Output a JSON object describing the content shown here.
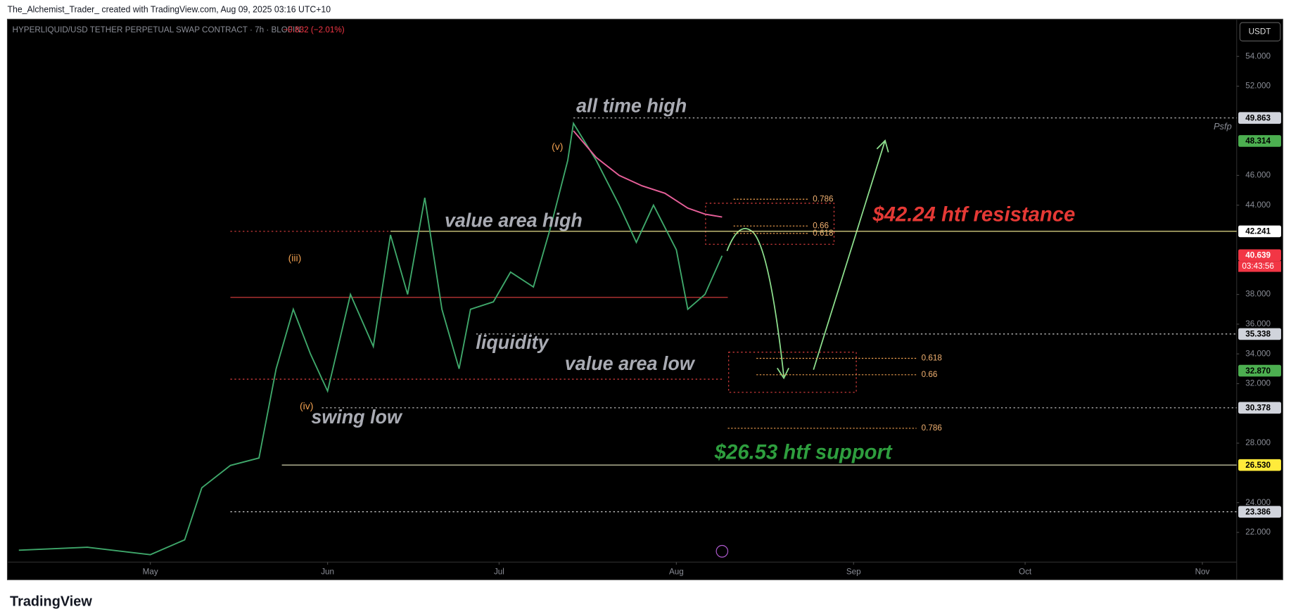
{
  "header": "The_Alchemist_Trader_ created with TradingView.com, Aug 09, 2025 03:16 UTC+10",
  "logo": "TradingView",
  "currency_button": "USDT",
  "chart_data": {
    "type": "line",
    "title": "HYPERLIQUID/USD TETHER PERPETUAL SWAP CONTRACT · 7h · BLOFIN",
    "change": "−0.832 (−2.01%)",
    "xlim": [
      "2025-04-06",
      "2025-11-07"
    ],
    "xticks": [
      {
        "value": "2025-05-01",
        "label": "May"
      },
      {
        "value": "2025-06-01",
        "label": "Jun"
      },
      {
        "value": "2025-07-01",
        "label": "Jul"
      },
      {
        "value": "2025-08-01",
        "label": "Aug"
      },
      {
        "value": "2025-09-01",
        "label": "Sep"
      },
      {
        "value": "2025-10-01",
        "label": "Oct"
      },
      {
        "value": "2025-11-01",
        "label": "Nov"
      }
    ],
    "ylim": [
      20,
      56.5
    ],
    "yticks": [
      {
        "value": 54,
        "label": "54.000"
      },
      {
        "value": 52,
        "label": "52.000"
      },
      {
        "value": 46,
        "label": "46.000"
      },
      {
        "value": 44,
        "label": "44.000"
      },
      {
        "value": 38,
        "label": "38.000"
      },
      {
        "value": 36,
        "label": "36.000"
      },
      {
        "value": 34,
        "label": "34.000"
      },
      {
        "value": 32,
        "label": "32.000"
      },
      {
        "value": 28,
        "label": "28.000"
      },
      {
        "value": 24,
        "label": "24.000"
      },
      {
        "value": 22,
        "label": "22.000"
      }
    ],
    "grid": false,
    "series": [
      {
        "color": "#3fa86b",
        "x": [
          "2025-04-08",
          "2025-04-20",
          "2025-05-01",
          "2025-05-07",
          "2025-05-10",
          "2025-05-15",
          "2025-05-20",
          "2025-05-23",
          "2025-05-26",
          "2025-05-29",
          "2025-06-01",
          "2025-06-05",
          "2025-06-09",
          "2025-06-12",
          "2025-06-15",
          "2025-06-18",
          "2025-06-21",
          "2025-06-24",
          "2025-06-26",
          "2025-06-30",
          "2025-07-03",
          "2025-07-07",
          "2025-07-10",
          "2025-07-13",
          "2025-07-14",
          "2025-07-18",
          "2025-07-22",
          "2025-07-25",
          "2025-07-28",
          "2025-08-01",
          "2025-08-03",
          "2025-08-06",
          "2025-08-09"
        ],
        "values": [
          20.8,
          21.0,
          20.5,
          21.5,
          25,
          26.5,
          27,
          33,
          37,
          34,
          31.5,
          38,
          34.5,
          42,
          38,
          44.5,
          37,
          33,
          37,
          37.5,
          39.5,
          38.5,
          42.5,
          47,
          49.5,
          47,
          44,
          41.5,
          44,
          41,
          37,
          38,
          40.6
        ]
      },
      {
        "color": "#e8609a",
        "x": [
          "2025-07-14",
          "2025-07-18",
          "2025-07-22",
          "2025-07-26",
          "2025-07-30",
          "2025-08-03",
          "2025-08-06",
          "2025-08-09"
        ],
        "values": [
          49,
          47.2,
          46,
          45.3,
          44.8,
          43.8,
          43.4,
          43.2
        ]
      }
    ],
    "levels": [
      {
        "value": 49.863,
        "from": "2025-07-14",
        "color": "#cfcfcf",
        "dash": true
      },
      {
        "value": 42.241,
        "from": "2025-06-12",
        "color": "#e8e08a",
        "dash": false
      },
      {
        "value": 42.24,
        "from": "2025-05-15",
        "to": "2025-06-12",
        "color": "#e04040",
        "dash": true
      },
      {
        "value": 37.8,
        "from": "2025-05-15",
        "to": "2025-08-10",
        "color": "#e04040",
        "dash": false
      },
      {
        "value": 35.338,
        "from": "2025-06-27",
        "color": "#cfcfcf",
        "dash": true
      },
      {
        "value": 32.3,
        "from": "2025-05-15",
        "to": "2025-08-09",
        "color": "#e04040",
        "dash": true
      },
      {
        "value": 30.378,
        "from": "2025-05-31",
        "color": "#cfcfcf",
        "dash": true
      },
      {
        "value": 26.53,
        "from": "2025-05-24",
        "color": "#e8e8c0",
        "dash": false
      },
      {
        "value": 23.386,
        "from": "2025-05-15",
        "color": "#cfcfcf",
        "dash": true
      }
    ],
    "fibs": [
      {
        "label": "0.786",
        "value": 44.4,
        "from": "2025-08-11",
        "to": "2025-08-24"
      },
      {
        "label": "0.66",
        "value": 42.6,
        "from": "2025-08-11",
        "to": "2025-08-24"
      },
      {
        "label": "0.618",
        "value": 42.1,
        "from": "2025-08-11",
        "to": "2025-08-24"
      },
      {
        "label": "0.618",
        "value": 33.7,
        "from": "2025-08-15",
        "to": "2025-09-12"
      },
      {
        "label": "0.66",
        "value": 32.6,
        "from": "2025-08-15",
        "to": "2025-09-12"
      },
      {
        "label": "0.786",
        "value": 29.0,
        "from": "2025-08-10",
        "to": "2025-09-12"
      }
    ],
    "price_tags": [
      {
        "value": 49.863,
        "label": "49.863",
        "color": "#d1d4dc",
        "text_color": "#000"
      },
      {
        "value": 48.314,
        "label": "48.314",
        "color": "#4caf50",
        "text_color": "#000"
      },
      {
        "value": 42.241,
        "label": "42.241",
        "color": "#ffffff",
        "text_color": "#000"
      },
      {
        "value": 40.639,
        "label": "40.639",
        "color": "#f23645",
        "text_color": "#fff"
      },
      {
        "value": 35.338,
        "label": "35.338",
        "color": "#d1d4dc",
        "text_color": "#000"
      },
      {
        "value": 32.87,
        "label": "32.870",
        "color": "#4caf50",
        "text_color": "#000"
      },
      {
        "value": 30.378,
        "label": "30.378",
        "color": "#d1d4dc",
        "text_color": "#000"
      },
      {
        "value": 26.53,
        "label": "26.530",
        "color": "#ffeb3b",
        "text_color": "#000"
      },
      {
        "value": 23.386,
        "label": "23.386",
        "color": "#d1d4dc",
        "text_color": "#000"
      }
    ],
    "countdown": "03:43:56",
    "annotations": {
      "ath": "all time high",
      "vah": "value area high",
      "liquidity": "liquidity",
      "val": "value area low",
      "swing": "swing low",
      "resistance": "$42.24 htf resistance",
      "support": "$26.53 htf support",
      "wave5": "(v)",
      "wave3": "(iii)",
      "wave4": "(iv)",
      "psfp": "Psfp"
    }
  }
}
